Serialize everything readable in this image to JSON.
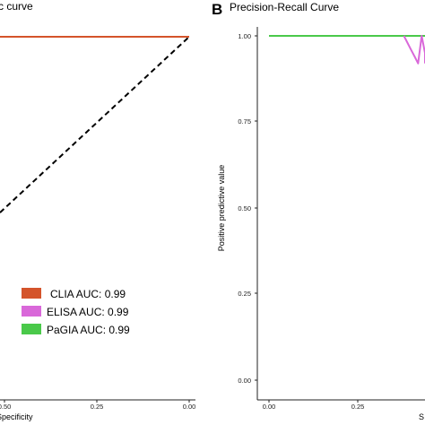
{
  "chart_data": [
    {
      "type": "line",
      "title": "ROC curve",
      "title_visible": "c curve",
      "xlabel": "Specificity",
      "x_reversed": true,
      "xlim": [
        0,
        1
      ],
      "ylim": [
        0,
        1
      ],
      "x_ticks": [
        "0.50",
        "0.25",
        "0.00"
      ],
      "grid": false,
      "legend_position": "bottom-right",
      "series": [
        {
          "name": "CLIA AUC: 0.99",
          "color": "#d4542b",
          "x": [
            1.0,
            0.0
          ],
          "y": [
            1.0,
            1.0
          ]
        },
        {
          "name": "ELISA AUC: 0.99",
          "color": "#d968d9",
          "x": [
            1.0,
            0.0
          ],
          "y": [
            1.0,
            1.0
          ]
        },
        {
          "name": "PaGIA AUC: 0.99",
          "color": "#4ac94a",
          "x": [
            1.0,
            0.0
          ],
          "y": [
            1.0,
            1.0
          ]
        }
      ],
      "reference_line": {
        "style": "dashed",
        "color": "#000000",
        "x": [
          1.0,
          0.0
        ],
        "y": [
          0.0,
          1.0
        ]
      }
    },
    {
      "type": "line",
      "panel_label": "B",
      "title": "Precision-Recall Curve",
      "ylabel": "Positive predictive value",
      "xlabel_visible": "S",
      "xlim": [
        0,
        1
      ],
      "ylim": [
        0,
        1
      ],
      "x_ticks": [
        "0.00",
        "0.25"
      ],
      "y_ticks": [
        "0.00",
        "0.25",
        "0.50",
        "0.75",
        "1.00"
      ],
      "grid": false,
      "series": [
        {
          "name": "PaGIA",
          "color": "#4ac94a",
          "x": [
            0.0,
            0.55
          ],
          "y": [
            1.0,
            1.0
          ]
        },
        {
          "name": "ELISA",
          "color": "#d968d9",
          "x": [
            0.38,
            0.4,
            0.41,
            0.42,
            0.43,
            0.45,
            0.46,
            0.47
          ],
          "y": [
            1.0,
            0.96,
            0.94,
            0.92,
            1.0,
            0.95,
            0.93,
            0.92
          ]
        }
      ]
    }
  ]
}
